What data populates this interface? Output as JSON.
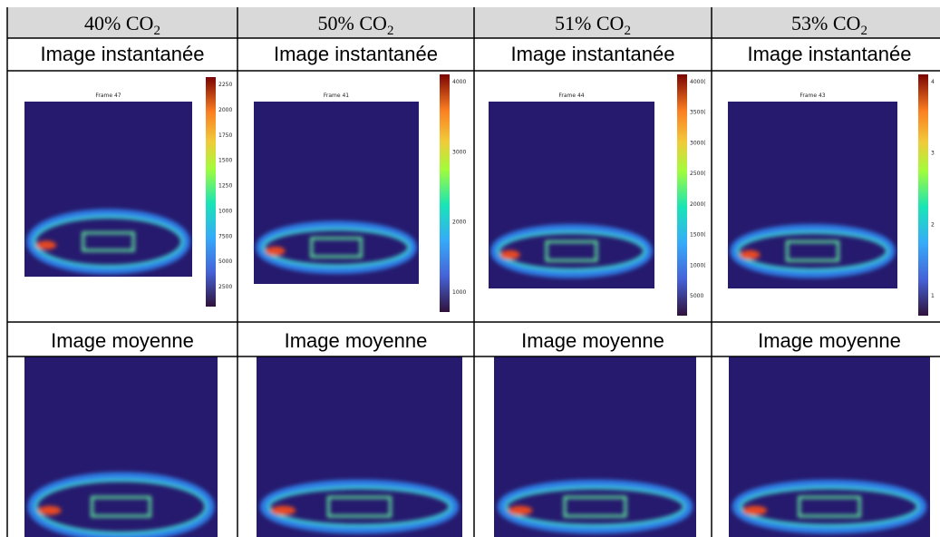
{
  "columns": [
    {
      "header": {
        "text": "40% CO",
        "sub": "2"
      },
      "instant_label": "Image instantanée",
      "frame": "Frame 47",
      "colorbar_labels": [
        "2250",
        "2000",
        "1750",
        "1500",
        "1250",
        "1000",
        "7500",
        "5000",
        "2500"
      ],
      "mean_label": "Image moyenne"
    },
    {
      "header": {
        "text": "50% CO",
        "sub": "2"
      },
      "instant_label": "Image instantanée",
      "frame": "Frame 41",
      "colorbar_labels": [
        "4000",
        "3000",
        "2000",
        "1000"
      ],
      "mean_label": "Image moyenne"
    },
    {
      "header": {
        "text": "51% CO",
        "sub": "2"
      },
      "instant_label": "Image instantanée",
      "frame": "Frame 44",
      "colorbar_labels": [
        "4000(",
        "3500(",
        "3000(",
        "2500(",
        "2000(",
        "1500(",
        "1000(",
        "5000"
      ],
      "mean_label": "Image moyenne"
    },
    {
      "header": {
        "text": "53% CO",
        "sub": "2"
      },
      "instant_label": "Image instantanée",
      "frame": "Frame 43",
      "colorbar_labels": [
        "4",
        "3",
        "2",
        "1"
      ],
      "mean_label": "Image moyenne"
    }
  ]
}
